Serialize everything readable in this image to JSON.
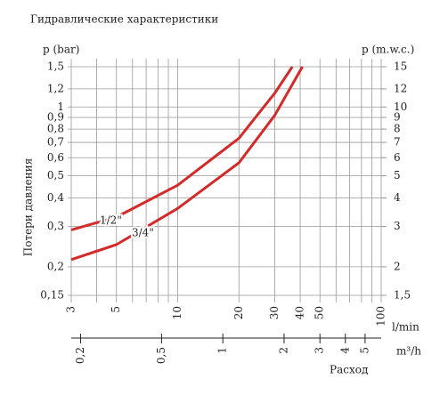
{
  "chart_data": {
    "type": "line",
    "title": "Гидравлические характеристики",
    "ylabel_left": "p (bar)",
    "ylabel_right": "p (m.w.c.)",
    "ylabel": "Потери давления",
    "xlabel": "l/min",
    "x2label": "m³/h",
    "xtitle": "Расход",
    "xscale": "log",
    "yscale": "log",
    "xlim": [
      3,
      100
    ],
    "xticks": [
      3,
      5,
      10,
      20,
      30,
      40,
      50,
      100
    ],
    "xgrid": [
      3,
      4,
      5,
      6,
      7,
      8,
      9,
      10,
      20,
      30,
      40,
      50,
      60,
      70,
      80,
      90,
      100
    ],
    "x2lim": [
      0.18,
      6
    ],
    "x2ticks": [
      {
        "value": 0.2,
        "label": "0,2"
      },
      {
        "value": 0.5,
        "label": "0,5"
      },
      1,
      2,
      3,
      4,
      5
    ],
    "ylim": [
      0.15,
      1.5
    ],
    "yticks": [
      {
        "value": 0.15,
        "label": "0,15"
      },
      {
        "value": 0.2,
        "label": "0,2"
      },
      {
        "value": 0.3,
        "label": "0,3"
      },
      {
        "value": 0.4,
        "label": "0,4"
      },
      {
        "value": 0.5,
        "label": "0,5"
      },
      {
        "value": 0.6,
        "label": "0,6"
      },
      {
        "value": 0.7,
        "label": "0,7"
      },
      {
        "value": 0.8,
        "label": "0,8"
      },
      {
        "value": 0.9,
        "label": "0,9"
      },
      1,
      {
        "value": 1.2,
        "label": "1,2"
      },
      {
        "value": 1.5,
        "label": "1,5"
      }
    ],
    "y2lim": [
      1.5,
      15
    ],
    "y2ticks": [
      {
        "value": 1.5,
        "label": "1,5"
      },
      2,
      3,
      4,
      5,
      6,
      7,
      8,
      9,
      10,
      12,
      15
    ],
    "grid": true,
    "series": [
      {
        "name": "1/2\"",
        "color": "#d42a2a",
        "x": [
          3,
          5,
          10,
          20,
          30,
          36.6
        ],
        "values": [
          0.29,
          0.33,
          0.455,
          0.73,
          1.15,
          1.5
        ]
      },
      {
        "name": "3/4\"",
        "color": "#d42a2a",
        "x": [
          3,
          5,
          10,
          20,
          30,
          41
        ],
        "values": [
          0.215,
          0.25,
          0.36,
          0.57,
          0.92,
          1.5
        ]
      }
    ]
  }
}
